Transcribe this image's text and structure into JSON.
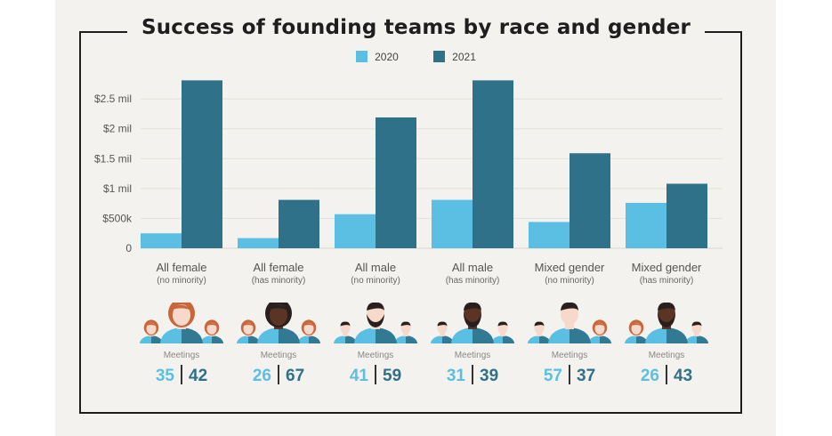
{
  "chart_data": {
    "type": "bar",
    "title": "Success of founding teams by race and gender",
    "categories": [
      {
        "main": "All female",
        "sub": "(no minority)"
      },
      {
        "main": "All female",
        "sub": "(has minority)"
      },
      {
        "main": "All male",
        "sub": "(no minority)"
      },
      {
        "main": "All male",
        "sub": "(has minority)"
      },
      {
        "main": "Mixed gender",
        "sub": "(no minority)"
      },
      {
        "main": "Mixed gender",
        "sub": "(has minority)"
      }
    ],
    "series": [
      {
        "name": "2020",
        "color": "#5bbfe3",
        "values": [
          0.25,
          0.17,
          0.57,
          0.81,
          0.44,
          0.76
        ]
      },
      {
        "name": "2021",
        "color": "#2e7189",
        "values": [
          2.81,
          0.81,
          2.19,
          2.81,
          1.59,
          1.08
        ]
      }
    ],
    "unit": "$ millions",
    "ylim": [
      0,
      2.8
    ],
    "yticks": [
      {
        "value": 0,
        "label": "0"
      },
      {
        "value": 0.5,
        "label": "$500k"
      },
      {
        "value": 1,
        "label": "$1 mil"
      },
      {
        "value": 1.5,
        "label": "$1.5 mil"
      },
      {
        "value": 2,
        "label": "$2 mil"
      },
      {
        "value": 2.5,
        "label": "$2.5 mil"
      }
    ],
    "grid": true,
    "legend_position": "top-center"
  },
  "meetings": {
    "label": "Meetings",
    "rows": [
      {
        "v2020": "35",
        "v2021": "42"
      },
      {
        "v2020": "26",
        "v2021": "67"
      },
      {
        "v2020": "41",
        "v2021": "59"
      },
      {
        "v2020": "31",
        "v2021": "39"
      },
      {
        "v2020": "57",
        "v2021": "37"
      },
      {
        "v2020": "26",
        "v2021": "43"
      }
    ]
  },
  "avatars": [
    {
      "main": "female-icon",
      "left": "female-icon",
      "right": "female-icon"
    },
    {
      "main": "female-minority-icon",
      "left": "female-icon",
      "right": "female-icon"
    },
    {
      "main": "male-bearded-icon",
      "left": "male-icon",
      "right": "male-icon"
    },
    {
      "main": "male-minority-bearded-icon",
      "left": "male-icon",
      "right": "male-icon"
    },
    {
      "main": "male-icon",
      "left": "male-icon",
      "right": "female-icon"
    },
    {
      "main": "male-minority-bearded-icon",
      "left": "female-icon",
      "right": "male-icon"
    }
  ],
  "colors": {
    "c2020": "#5bbfe3",
    "c2021": "#2e7189",
    "skin_light": "#f6d9cb",
    "skin_dark": "#5a3526",
    "hair_auburn": "#c8673a",
    "hair_dark": "#2a1f1f",
    "shirt": "#5bbfe3",
    "shirt_dark": "#2e7189"
  }
}
